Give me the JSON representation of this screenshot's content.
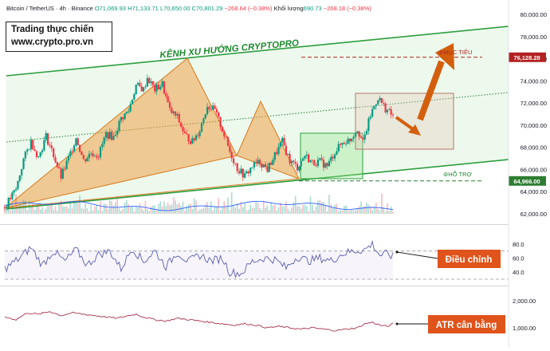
{
  "header": {
    "symbol": "Bitcoin / TetherUS · 4h · Binance",
    "open": "O71,069.93",
    "high": "H71,133.71",
    "low": "L70,650.00",
    "close": "C70,801.29",
    "change": "−268.64 (−0.38%)",
    "volume_label": "Khối lượng",
    "volume_value": "690.73",
    "volume_change": "−268.18 (−0.38%)"
  },
  "brand": {
    "line1": "Trading thực chiến",
    "line2": "www.crypto.pro.vn"
  },
  "annotations": {
    "channel_title": "KÊNH XU HƯỚNG CRYPTOPRO",
    "target_label": "⊚MỤC TIÊU",
    "support_label": "⊚HỖ TRỢ",
    "rsi_label": "Điều chỉnh",
    "atr_label": "ATR cân bằng"
  },
  "colors": {
    "up": "#089981",
    "down": "#f23645",
    "channel": "#2e9e3e",
    "harmonic": "#f0a34a",
    "arrow": "#d35f0e",
    "target_line": "#b22222",
    "support_line": "#2e7d32"
  },
  "chart_data": [
    {
      "type": "candlestick",
      "title": "Bitcoin / TetherUS · 4h · Binance",
      "ylim": [
        61500,
        80500
      ],
      "y_ticks": [
        62000,
        64000,
        66000,
        68000,
        70000,
        72000,
        74000,
        76000,
        78000,
        80000
      ],
      "y_tick_labels": [
        "62,000.00",
        "64,000.00",
        "66,000.00",
        "68,000.00",
        "70,000.00",
        "72,000.00",
        "74,000.00",
        "76,000.00",
        "78,000.00",
        "80,000.00"
      ],
      "price_badges": [
        {
          "value": 76128.28,
          "label": "76,128.28",
          "color": "#b22222"
        },
        {
          "value": 64966.0,
          "label": "64,966.00",
          "color": "#2e7d32"
        }
      ],
      "target_level": 76128.28,
      "support_level": 64966.0,
      "path_points": [
        [
          0,
          62600
        ],
        [
          6,
          64200
        ],
        [
          10,
          66900
        ],
        [
          14,
          68500
        ],
        [
          18,
          67100
        ],
        [
          22,
          69000
        ],
        [
          26,
          67300
        ],
        [
          30,
          65300
        ],
        [
          34,
          67000
        ],
        [
          38,
          68900
        ],
        [
          42,
          66800
        ],
        [
          46,
          67500
        ],
        [
          50,
          67300
        ],
        [
          54,
          69200
        ],
        [
          58,
          68900
        ],
        [
          62,
          70600
        ],
        [
          66,
          71300
        ],
        [
          70,
          73600
        ],
        [
          74,
          73200
        ],
        [
          76,
          74300
        ],
        [
          80,
          73200
        ],
        [
          84,
          73700
        ],
        [
          88,
          71300
        ],
        [
          92,
          70700
        ],
        [
          96,
          69100
        ],
        [
          100,
          68500
        ],
        [
          104,
          69600
        ],
        [
          108,
          71800
        ],
        [
          112,
          71300
        ],
        [
          116,
          69600
        ],
        [
          120,
          67600
        ],
        [
          124,
          66100
        ],
        [
          128,
          65400
        ],
        [
          132,
          66300
        ],
        [
          136,
          66700
        ],
        [
          140,
          66000
        ],
        [
          144,
          67300
        ],
        [
          148,
          68500
        ],
        [
          152,
          66800
        ],
        [
          156,
          66200
        ],
        [
          160,
          67300
        ],
        [
          164,
          66600
        ],
        [
          168,
          66700
        ],
        [
          172,
          66300
        ],
        [
          176,
          67600
        ],
        [
          180,
          68400
        ],
        [
          184,
          68700
        ],
        [
          188,
          69700
        ],
        [
          191,
          68400
        ],
        [
          195,
          70900
        ],
        [
          199,
          72500
        ],
        [
          203,
          71500
        ],
        [
          207,
          70800
        ]
      ]
    },
    {
      "type": "line",
      "title": "",
      "ylim": [
        30,
        95
      ],
      "y_ticks": [
        40,
        60,
        80
      ],
      "y_tick_labels": [
        "40.0",
        "60.0",
        "80.0"
      ],
      "bands": [
        70,
        30
      ],
      "points": [
        [
          0,
          45
        ],
        [
          8,
          60
        ],
        [
          14,
          75
        ],
        [
          20,
          50
        ],
        [
          26,
          70
        ],
        [
          32,
          55
        ],
        [
          38,
          72
        ],
        [
          44,
          50
        ],
        [
          50,
          65
        ],
        [
          56,
          70
        ],
        [
          62,
          45
        ],
        [
          68,
          74
        ],
        [
          74,
          55
        ],
        [
          80,
          70
        ],
        [
          86,
          48
        ],
        [
          92,
          68
        ],
        [
          98,
          55
        ],
        [
          104,
          64
        ],
        [
          110,
          56
        ],
        [
          116,
          60
        ],
        [
          120,
          40
        ],
        [
          126,
          38
        ],
        [
          132,
          55
        ],
        [
          138,
          60
        ],
        [
          144,
          58
        ],
        [
          150,
          46
        ],
        [
          156,
          62
        ],
        [
          162,
          56
        ],
        [
          168,
          60
        ],
        [
          174,
          56
        ],
        [
          180,
          66
        ],
        [
          186,
          70
        ],
        [
          192,
          72
        ],
        [
          196,
          80
        ],
        [
          200,
          64
        ],
        [
          204,
          66
        ],
        [
          207,
          62
        ]
      ]
    },
    {
      "type": "line",
      "title": "",
      "ylim": [
        500,
        2300
      ],
      "y_ticks": [
        1000,
        2000
      ],
      "y_tick_labels": [
        "1,000.00",
        "2,000.00"
      ],
      "points": [
        [
          0,
          1400
        ],
        [
          6,
          1300
        ],
        [
          12,
          1550
        ],
        [
          18,
          1500
        ],
        [
          24,
          1600
        ],
        [
          30,
          1450
        ],
        [
          36,
          1550
        ],
        [
          42,
          1500
        ],
        [
          48,
          1450
        ],
        [
          54,
          1400
        ],
        [
          60,
          1350
        ],
        [
          66,
          1450
        ],
        [
          70,
          1500
        ],
        [
          74,
          1400
        ],
        [
          80,
          1300
        ],
        [
          86,
          1250
        ],
        [
          92,
          1350
        ],
        [
          98,
          1300
        ],
        [
          104,
          1250
        ],
        [
          110,
          1200
        ],
        [
          116,
          1150
        ],
        [
          122,
          1100
        ],
        [
          128,
          1150
        ],
        [
          134,
          1100
        ],
        [
          140,
          1000
        ],
        [
          146,
          1050
        ],
        [
          152,
          1000
        ],
        [
          158,
          950
        ],
        [
          164,
          1000
        ],
        [
          170,
          950
        ],
        [
          176,
          900
        ],
        [
          182,
          950
        ],
        [
          188,
          1000
        ],
        [
          192,
          1150
        ],
        [
          196,
          1200
        ],
        [
          200,
          1100
        ],
        [
          204,
          1050
        ],
        [
          207,
          1150
        ]
      ]
    }
  ]
}
